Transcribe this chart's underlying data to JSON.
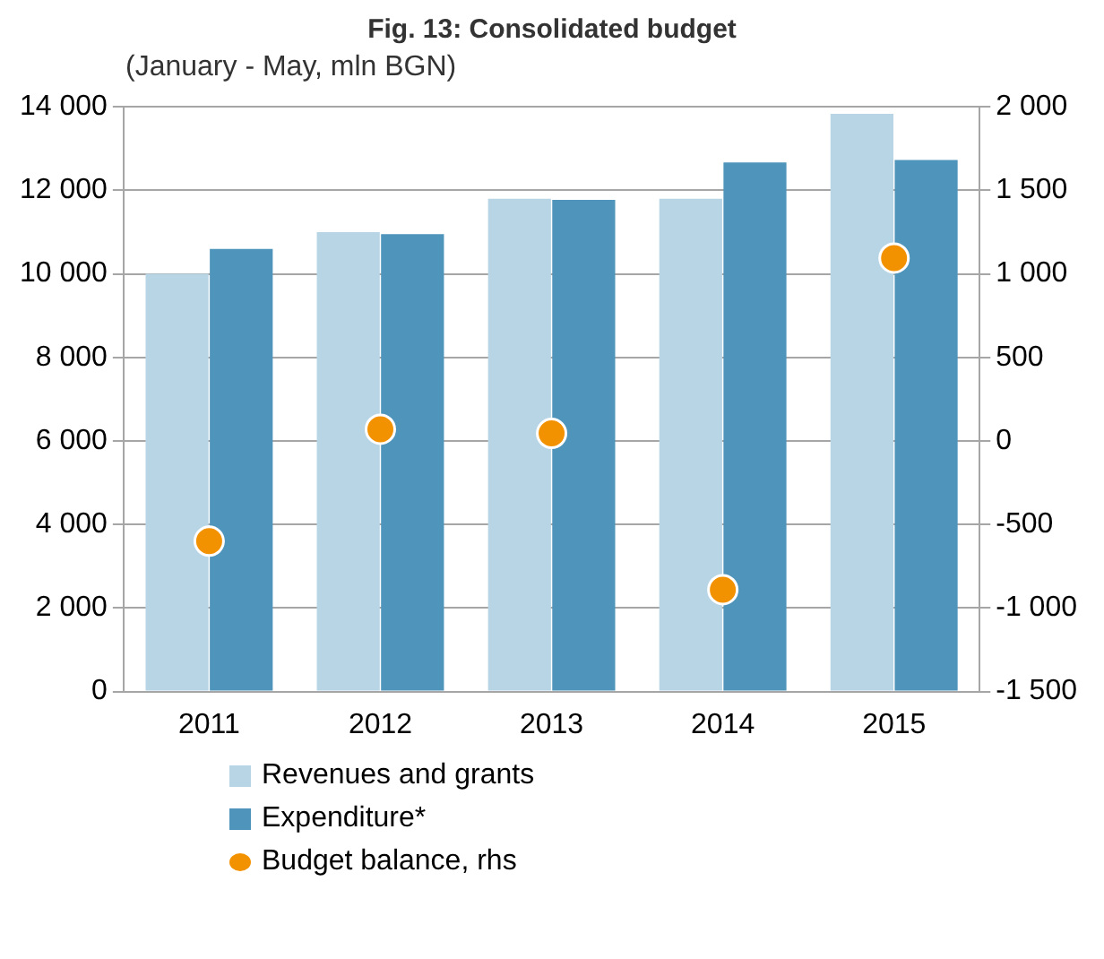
{
  "chart_data": {
    "type": "bar",
    "title": "Fig. 13: Consolidated budget",
    "subtitle": "(January - May, mln BGN)",
    "categories": [
      "2011",
      "2012",
      "2013",
      "2014",
      "2015"
    ],
    "series": [
      {
        "name": "Revenues and grants",
        "color": "#b8d5e6",
        "values": [
          10000,
          11000,
          11800,
          11800,
          13830
        ]
      },
      {
        "name": "Expenditure*",
        "color": "#4e94bb",
        "values": [
          10600,
          10950,
          11770,
          12670,
          12730
        ]
      },
      {
        "name": "Budget balance, rhs",
        "type": "scatter",
        "axis": "y2",
        "color": "#f39200",
        "values": [
          -600,
          70,
          45,
          -890,
          1095
        ]
      }
    ],
    "ylim": [
      0,
      14000
    ],
    "yticks": [
      0,
      2000,
      4000,
      6000,
      8000,
      10000,
      12000,
      14000
    ],
    "y2lim": [
      -1500,
      2000
    ],
    "y2ticks": [
      -1500,
      -1000,
      -500,
      0,
      500,
      1000,
      1500,
      2000
    ],
    "grid": "y",
    "legend": "bottom",
    "marker": "circle"
  }
}
